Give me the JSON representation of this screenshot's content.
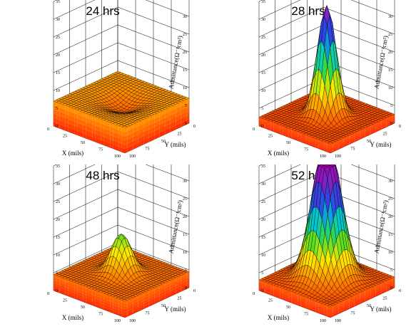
{
  "chart_data": [
    {
      "type": "surface3d",
      "title": "24 hrs",
      "xlabel": "X (mils)",
      "ylabel": "Y (mils)",
      "zlabel": "Admittance(Ω⁻¹cm²)",
      "xlim": [
        0,
        100
      ],
      "ylim": [
        0,
        100
      ],
      "zlim": [
        0,
        35
      ],
      "x_ticks": [
        "0",
        "25",
        "50",
        "75",
        "100"
      ],
      "y_ticks": [
        "0",
        "25",
        "50",
        "75",
        "100"
      ],
      "z_ticks": [
        "0",
        "5",
        "10",
        "15",
        "20",
        "25",
        "30",
        "35"
      ],
      "surface": {
        "base": 7,
        "peak_height": -3,
        "peak_x": 52,
        "peak_y": 50,
        "peak_width": 16,
        "cap": null
      },
      "colorscale": "rainbow"
    },
    {
      "type": "surface3d",
      "title": "28 hrs",
      "xlabel": "X (mils)",
      "ylabel": "Y (mils)",
      "zlabel": "Admittance(Ω⁻¹cm²)",
      "xlim": [
        0,
        100
      ],
      "ylim": [
        0,
        100
      ],
      "zlim": [
        0,
        35
      ],
      "x_ticks": [
        "0",
        "25",
        "50",
        "75",
        "100"
      ],
      "y_ticks": [
        "0",
        "25",
        "50",
        "75",
        "100"
      ],
      "z_ticks": [
        "0",
        "5",
        "10",
        "15",
        "20",
        "25",
        "30",
        "35"
      ],
      "surface": {
        "base": 2.5,
        "peak_height": 31,
        "peak_x": 50,
        "peak_y": 50,
        "peak_width": 10,
        "cap": null
      },
      "colorscale": "rainbow"
    },
    {
      "type": "surface3d",
      "title": "48 hrs",
      "xlabel": "X (mils)",
      "ylabel": "Y (mils)",
      "zlabel": "Admittance(Ω⁻¹cm²)",
      "xlim": [
        0,
        100
      ],
      "ylim": [
        0,
        100
      ],
      "zlim": [
        0,
        35
      ],
      "x_ticks": [
        "0",
        "25",
        "50",
        "75",
        "100"
      ],
      "y_ticks": [
        "0",
        "25",
        "50",
        "75",
        "100"
      ],
      "z_ticks": [
        "0",
        "5",
        "10",
        "15",
        "20",
        "25",
        "30",
        "35"
      ],
      "surface": {
        "base": 4.5,
        "peak_height": 11,
        "peak_x": 50,
        "peak_y": 50,
        "peak_width": 11,
        "cap": null
      },
      "colorscale": "rainbow"
    },
    {
      "type": "surface3d",
      "title": "52 hrs",
      "xlabel": "X (mils)",
      "ylabel": "Y (mils)",
      "zlabel": "Admittance(Ω⁻¹cm²)",
      "xlim": [
        0,
        100
      ],
      "ylim": [
        0,
        100
      ],
      "zlim": [
        0,
        35
      ],
      "x_ticks": [
        "0",
        "25",
        "50",
        "75",
        "100"
      ],
      "y_ticks": [
        "0",
        "25",
        "50",
        "75",
        "100"
      ],
      "z_ticks": [
        "0",
        "5",
        "10",
        "15",
        "20",
        "25",
        "30",
        "35"
      ],
      "surface": {
        "base": 3,
        "peak_height": 40,
        "peak_x": 50,
        "peak_y": 50,
        "peak_width": 15,
        "cap": 35
      },
      "colorscale": "rainbow"
    }
  ]
}
